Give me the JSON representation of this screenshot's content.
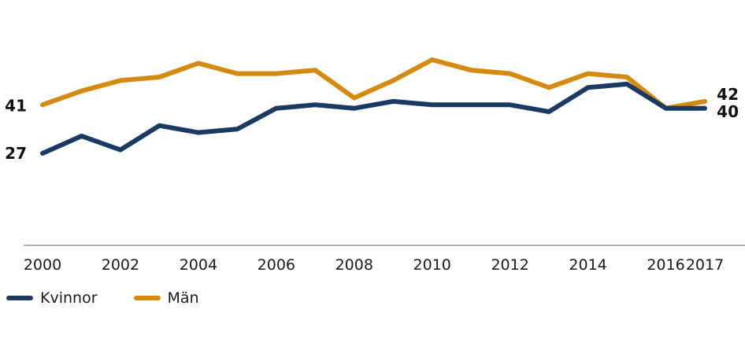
{
  "chart_data": {
    "type": "line",
    "x": [
      2000,
      2001,
      2002,
      2003,
      2004,
      2005,
      2006,
      2007,
      2008,
      2009,
      2010,
      2011,
      2012,
      2013,
      2014,
      2015,
      2016,
      2017
    ],
    "x_tick_labels": [
      "2000",
      "2002",
      "2004",
      "2006",
      "2008",
      "2010",
      "2012",
      "2014",
      "2016",
      "2017"
    ],
    "series": [
      {
        "name": "Kvinnor",
        "color": "#1b3a63",
        "values": [
          27,
          32,
          28,
          35,
          33,
          34,
          40,
          41,
          40,
          42,
          41,
          41,
          41,
          39,
          46,
          47,
          40,
          40
        ],
        "start_label": "27",
        "end_label": "40"
      },
      {
        "name": "Män",
        "color": "#d4890f",
        "values": [
          41,
          45,
          48,
          49,
          53,
          50,
          50,
          51,
          43,
          48,
          54,
          51,
          50,
          46,
          50,
          49,
          40,
          42
        ],
        "start_label": "41",
        "end_label": "42"
      }
    ],
    "ylim": [
      0,
      60
    ],
    "grid": false,
    "legend_position": "bottom-left",
    "title": "",
    "xlabel": "",
    "ylabel": ""
  }
}
